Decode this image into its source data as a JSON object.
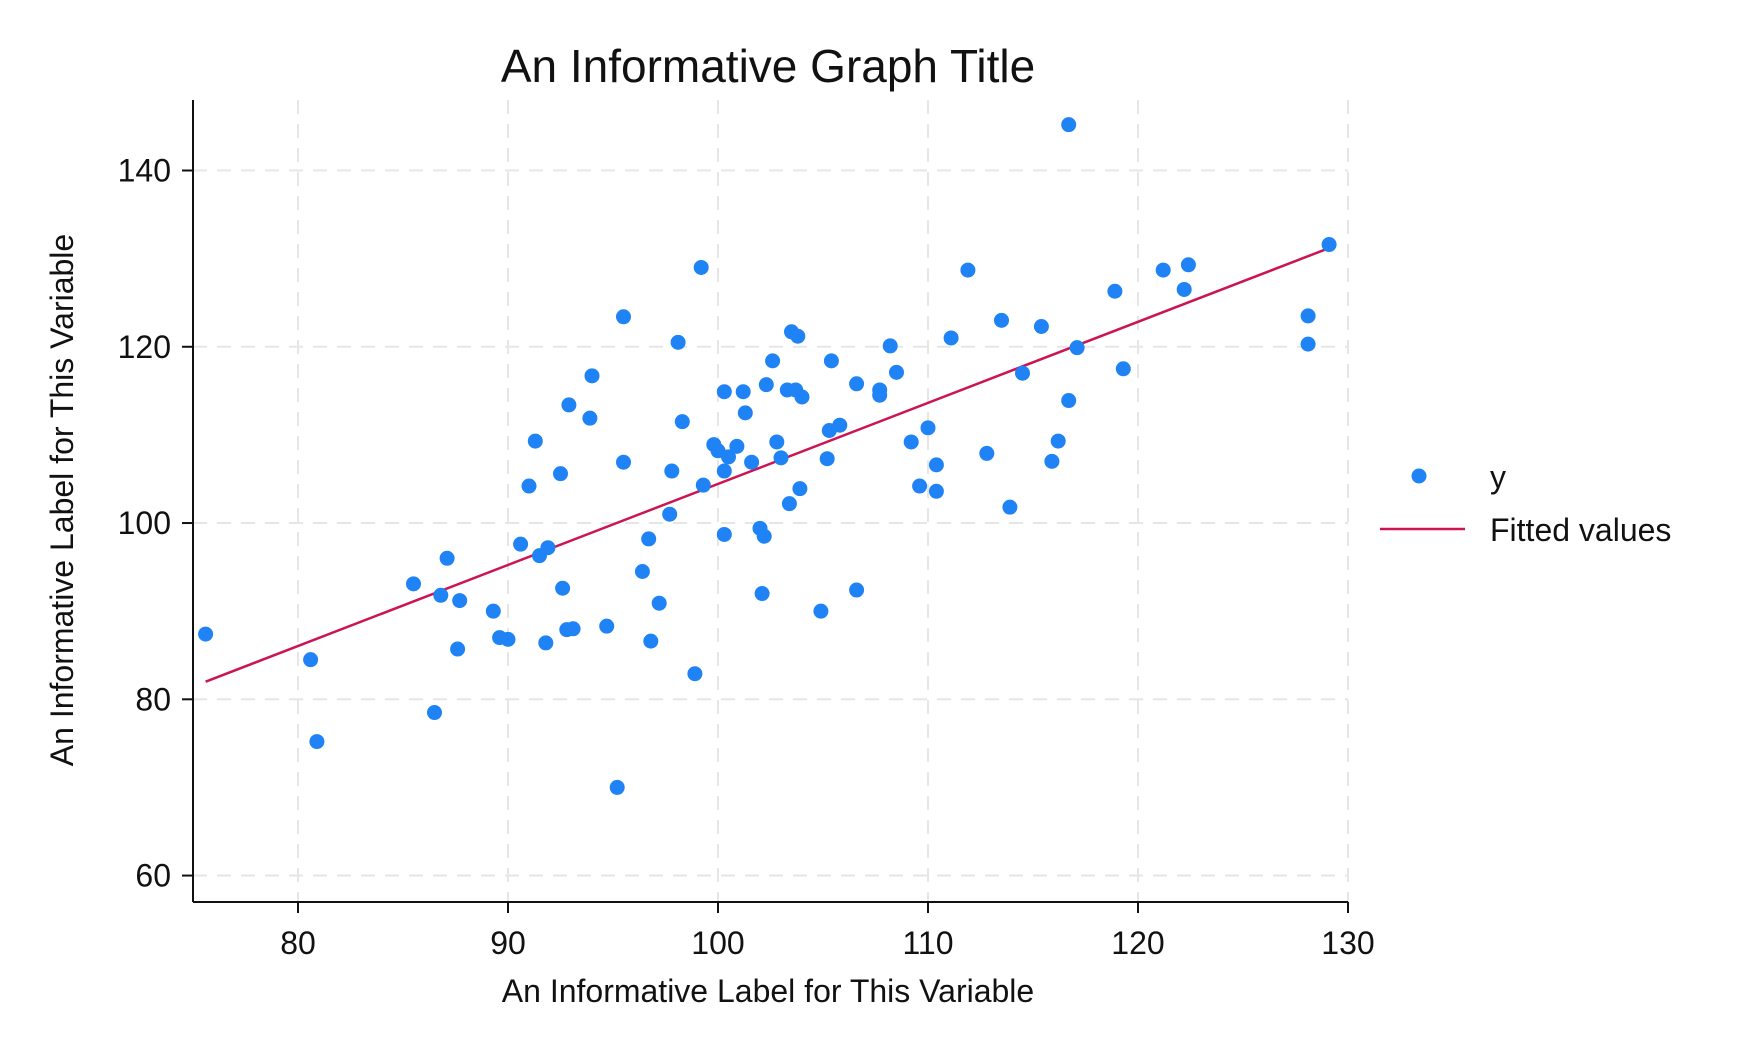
{
  "chart_data": {
    "type": "scatter",
    "title": "An Informative Graph Title",
    "xlabel": "An Informative Label for This Variable",
    "ylabel": "An Informative Label for This Variable",
    "xlim": [
      75,
      130
    ],
    "ylim": [
      57,
      148
    ],
    "xticks": [
      80,
      90,
      100,
      110,
      120,
      130
    ],
    "yticks": [
      60,
      80,
      100,
      120,
      140
    ],
    "grid": true,
    "legend_position": "right",
    "colors": {
      "points": "#1f82f5",
      "fit": "#cc1455"
    },
    "series": [
      {
        "name": "y",
        "kind": "scatter",
        "points": [
          [
            75.6,
            87.4
          ],
          [
            80.6,
            84.5
          ],
          [
            80.9,
            75.2
          ],
          [
            85.5,
            93.1
          ],
          [
            86.5,
            78.5
          ],
          [
            86.8,
            91.8
          ],
          [
            87.1,
            96.0
          ],
          [
            87.6,
            85.7
          ],
          [
            87.7,
            91.2
          ],
          [
            89.3,
            90.0
          ],
          [
            89.6,
            87.0
          ],
          [
            90.0,
            86.8
          ],
          [
            90.6,
            97.6
          ],
          [
            91.0,
            104.2
          ],
          [
            91.3,
            109.3
          ],
          [
            91.5,
            96.3
          ],
          [
            91.8,
            86.4
          ],
          [
            91.9,
            97.2
          ],
          [
            92.5,
            105.6
          ],
          [
            92.6,
            92.6
          ],
          [
            92.8,
            87.9
          ],
          [
            92.9,
            113.4
          ],
          [
            93.1,
            88.0
          ],
          [
            93.9,
            111.9
          ],
          [
            94.0,
            116.7
          ],
          [
            94.7,
            88.3
          ],
          [
            95.2,
            70.0
          ],
          [
            95.5,
            123.4
          ],
          [
            95.5,
            106.9
          ],
          [
            96.4,
            94.5
          ],
          [
            96.7,
            98.2
          ],
          [
            96.8,
            86.6
          ],
          [
            97.2,
            90.9
          ],
          [
            97.7,
            101.0
          ],
          [
            97.8,
            105.9
          ],
          [
            98.1,
            120.5
          ],
          [
            98.3,
            111.5
          ],
          [
            98.9,
            82.9
          ],
          [
            99.2,
            129.0
          ],
          [
            99.3,
            104.3
          ],
          [
            99.8,
            108.9
          ],
          [
            100.0,
            108.2
          ],
          [
            100.3,
            98.7
          ],
          [
            100.3,
            105.9
          ],
          [
            100.3,
            114.9
          ],
          [
            100.5,
            107.5
          ],
          [
            100.9,
            108.7
          ],
          [
            101.2,
            114.9
          ],
          [
            101.3,
            112.5
          ],
          [
            101.6,
            106.9
          ],
          [
            102.0,
            99.4
          ],
          [
            102.1,
            92.0
          ],
          [
            102.2,
            98.5
          ],
          [
            102.3,
            115.7
          ],
          [
            102.6,
            118.4
          ],
          [
            102.8,
            109.2
          ],
          [
            103.0,
            107.4
          ],
          [
            103.3,
            115.1
          ],
          [
            103.4,
            102.2
          ],
          [
            103.5,
            121.7
          ],
          [
            103.7,
            115.1
          ],
          [
            103.8,
            121.2
          ],
          [
            103.9,
            103.9
          ],
          [
            104.0,
            114.3
          ],
          [
            104.9,
            90.0
          ],
          [
            105.2,
            107.3
          ],
          [
            105.3,
            110.5
          ],
          [
            105.4,
            118.4
          ],
          [
            105.8,
            111.1
          ],
          [
            106.6,
            115.8
          ],
          [
            106.6,
            92.4
          ],
          [
            107.7,
            115.1
          ],
          [
            107.7,
            114.5
          ],
          [
            108.2,
            120.1
          ],
          [
            108.5,
            117.1
          ],
          [
            109.2,
            109.2
          ],
          [
            109.6,
            104.2
          ],
          [
            110.0,
            110.8
          ],
          [
            110.4,
            106.6
          ],
          [
            110.4,
            103.6
          ],
          [
            111.1,
            121.0
          ],
          [
            111.9,
            128.7
          ],
          [
            112.8,
            107.9
          ],
          [
            113.5,
            123.0
          ],
          [
            113.9,
            101.8
          ],
          [
            114.5,
            117.0
          ],
          [
            115.4,
            122.3
          ],
          [
            115.9,
            107.0
          ],
          [
            116.2,
            109.3
          ],
          [
            116.7,
            113.9
          ],
          [
            116.7,
            145.2
          ],
          [
            117.1,
            119.9
          ],
          [
            118.9,
            126.3
          ],
          [
            119.3,
            117.5
          ],
          [
            121.2,
            128.7
          ],
          [
            122.2,
            126.5
          ],
          [
            122.4,
            129.3
          ],
          [
            128.1,
            123.5
          ],
          [
            128.1,
            120.3
          ],
          [
            129.1,
            131.6
          ]
        ]
      },
      {
        "name": "Fitted values",
        "kind": "line",
        "points": [
          [
            75.6,
            82.0
          ],
          [
            129.1,
            131.2
          ]
        ]
      }
    ]
  }
}
